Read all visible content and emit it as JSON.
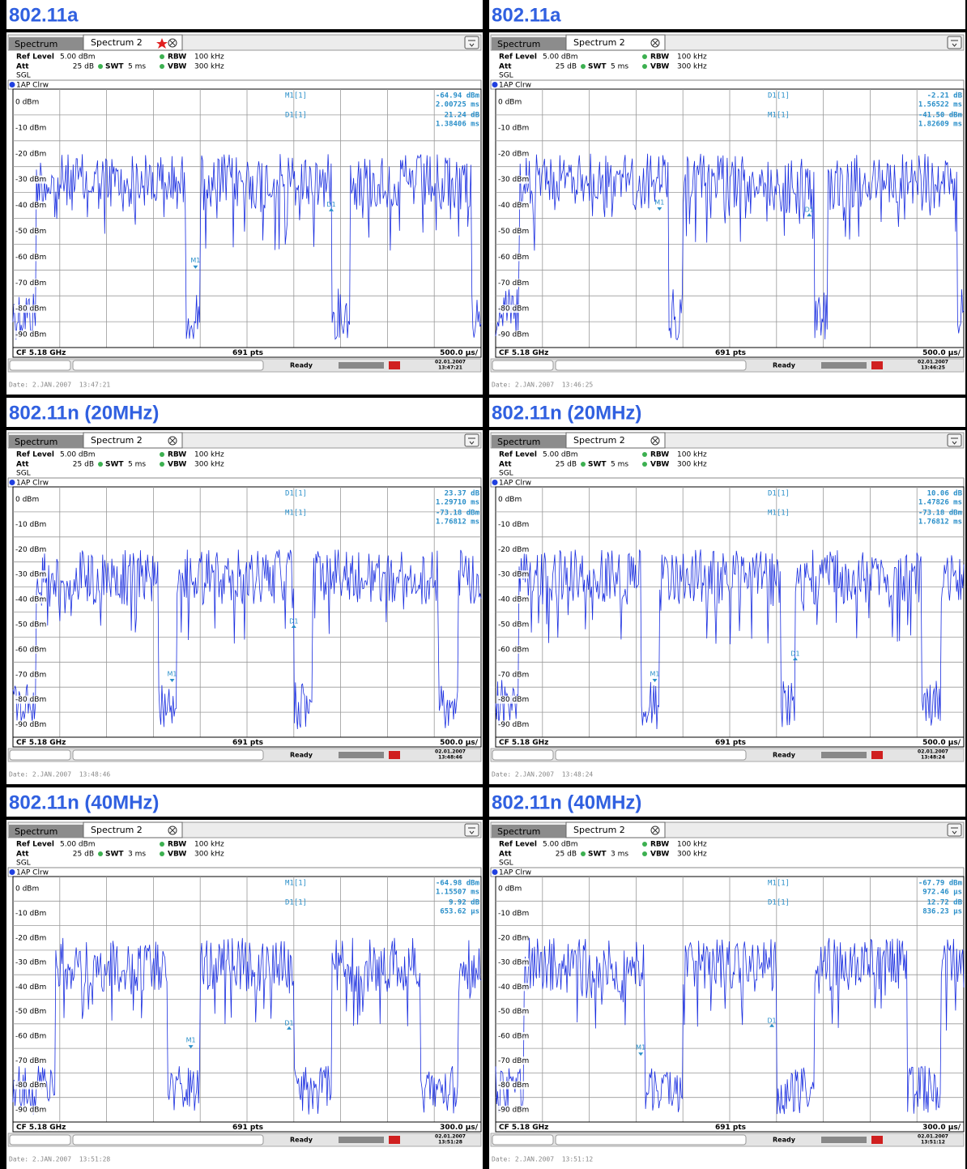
{
  "common": {
    "tab_labels": [
      "Spectrum",
      "Spectrum 2"
    ],
    "ref_level_label": "Ref Level",
    "ref_level": "5.00 dBm",
    "att_label": "Att",
    "att": "25 dB",
    "swt_label": "SWT",
    "rbw_label": "RBW",
    "rbw": "100 kHz",
    "vbw_label": "VBW",
    "vbw": "300 kHz",
    "mode": "SGL",
    "trace_label": "1AP Clrw",
    "y_labels": [
      "0 dBm",
      "-10 dBm",
      "-20 dBm",
      "-30 dBm",
      "-40 dBm",
      "-50 dBm",
      "-60 dBm",
      "-70 dBm",
      "-80 dBm",
      "-90 dBm"
    ],
    "cf": "CF 5.18 GHz",
    "pts": "691 pts",
    "status": "Ready"
  },
  "panels": [
    {
      "title": "802.11a",
      "swt": "5 ms",
      "span": "500.0 µs/",
      "markers": [
        {
          "name": "M1[1]",
          "value": "-64.94 dBm",
          "time": "2.00725 ms"
        },
        {
          "name": "D1[1]",
          "value": "21.24 dB",
          "time": "1.38406 ms"
        }
      ],
      "tags": [
        "M1",
        "D1"
      ],
      "stamp": [
        "02.01.2007",
        "13:47:21"
      ],
      "date": "Date: 2.JAN.2007  13:47:21"
    },
    {
      "title": "802.11a",
      "swt": "5 ms",
      "span": "500.0 µs/",
      "markers": [
        {
          "name": "D1[1]",
          "value": "-2.21 dB",
          "time": "1.56522 ms"
        },
        {
          "name": "M1[1]",
          "value": "-41.50 dBm",
          "time": "1.82609 ms"
        }
      ],
      "tags": [
        "M1",
        "D1"
      ],
      "stamp": [
        "02.01.2007",
        "13:46:25"
      ],
      "date": "Date: 2.JAN.2007  13:46:25"
    },
    {
      "title": "802.11n (20MHz)",
      "swt": "5 ms",
      "span": "500.0 µs/",
      "markers": [
        {
          "name": "D1[1]",
          "value": "23.37 dB",
          "time": "1.29710 ms"
        },
        {
          "name": "M1[1]",
          "value": "-73.18 dBm",
          "time": "1.76812 ms"
        }
      ],
      "tags": [
        "M1",
        "D1"
      ],
      "stamp": [
        "02.01.2007",
        "13:48:46"
      ],
      "date": "Date: 2.JAN.2007  13:48:46"
    },
    {
      "title": "802.11n (20MHz)",
      "swt": "5 ms",
      "span": "500.0 µs/",
      "markers": [
        {
          "name": "D1[1]",
          "value": "10.06 dB",
          "time": "1.47826 ms"
        },
        {
          "name": "M1[1]",
          "value": "-73.18 dBm",
          "time": "1.76812 ms"
        }
      ],
      "tags": [
        "M1",
        "D1"
      ],
      "stamp": [
        "02.01.2007",
        "13:48:24"
      ],
      "date": "Date: 2.JAN.2007  13:48:24"
    },
    {
      "title": "802.11n (40MHz)",
      "swt": "3 ms",
      "span": "300.0 µs/",
      "markers": [
        {
          "name": "M1[1]",
          "value": "-64.98 dBm",
          "time": "1.15507 ms"
        },
        {
          "name": "D1[1]",
          "value": "9.92 dB",
          "time": "653.62 µs"
        }
      ],
      "tags": [
        "M1",
        "D1"
      ],
      "stamp": [
        "02.01.2007",
        "13:51:28"
      ],
      "date": "Date: 2.JAN.2007  13:51:28"
    },
    {
      "title": "802.11n (40MHz)",
      "swt": "3 ms",
      "span": "300.0 µs/",
      "markers": [
        {
          "name": "M1[1]",
          "value": "-67.79 dBm",
          "time": "972.46 µs"
        },
        {
          "name": "D1[1]",
          "value": "12.72 dB",
          "time": "836.23 µs"
        }
      ],
      "tags": [
        "M1",
        "D1"
      ],
      "stamp": [
        "02.01.2007",
        "13:51:12"
      ],
      "date": "Date: 2.JAN.2007  13:51:12"
    }
  ]
}
